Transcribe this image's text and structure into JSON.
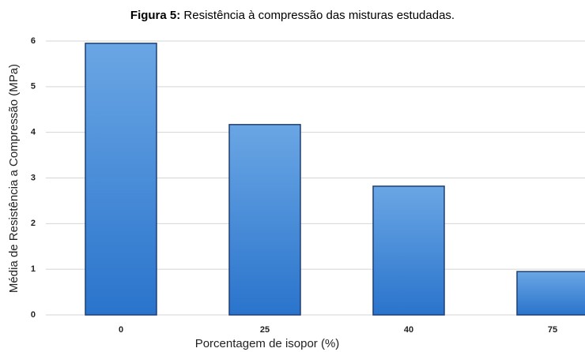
{
  "chart_data": {
    "type": "bar",
    "title_label": "Figura 5:",
    "title": "Resistência à compressão das misturas estudadas.",
    "x_label": "Porcentagem de isopor (%)",
    "y_label": "Média de Resistência a Compressão (MPa)",
    "categories": [
      "0",
      "25",
      "40",
      "75"
    ],
    "values": [
      5.95,
      4.17,
      2.82,
      0.95
    ],
    "color": "#3b84d6",
    "ylim": [
      0,
      6
    ],
    "yticks": [
      0,
      1,
      2,
      3,
      4,
      5,
      6
    ],
    "grid": true
  }
}
